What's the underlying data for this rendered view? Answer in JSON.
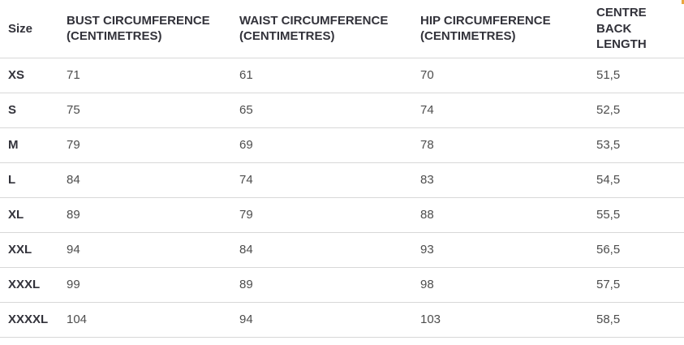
{
  "size_table": {
    "headers": [
      {
        "label": "Size"
      },
      {
        "label": "BUST CIRCUMFERENCE (CENTIMETRES)"
      },
      {
        "label": "WAIST CIRCUMFERENCE (CENTIMETRES)"
      },
      {
        "label": "HIP CIRCUMFERENCE (CENTIMETRES)"
      },
      {
        "label": "CENTRE BACK LENGTH"
      }
    ],
    "rows": [
      {
        "size": "XS",
        "bust": "71",
        "waist": "61",
        "hip": "70",
        "centre_back": "51,5"
      },
      {
        "size": "S",
        "bust": "75",
        "waist": "65",
        "hip": "74",
        "centre_back": "52,5"
      },
      {
        "size": "M",
        "bust": "79",
        "waist": "69",
        "hip": "78",
        "centre_back": "53,5"
      },
      {
        "size": "L",
        "bust": "84",
        "waist": "74",
        "hip": "83",
        "centre_back": "54,5"
      },
      {
        "size": "XL",
        "bust": "89",
        "waist": "79",
        "hip": "88",
        "centre_back": "55,5"
      },
      {
        "size": "XXL",
        "bust": "94",
        "waist": "84",
        "hip": "93",
        "centre_back": "56,5"
      },
      {
        "size": "XXXL",
        "bust": "99",
        "waist": "89",
        "hip": "98",
        "centre_back": "57,5"
      },
      {
        "size": "XXXXL",
        "bust": "104",
        "waist": "94",
        "hip": "103",
        "centre_back": "58,5"
      }
    ],
    "colors": {
      "header_text": "#32323a",
      "body_text": "#4d4d4d",
      "divider": "#d8d8d8",
      "background": "#ffffff",
      "clipped_fragment": "#e9a63e"
    }
  }
}
